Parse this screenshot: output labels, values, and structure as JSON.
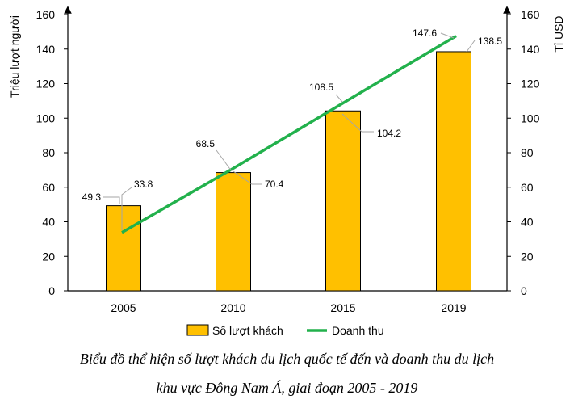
{
  "chart_data": {
    "type": "bar+line",
    "categories": [
      "2005",
      "2010",
      "2015",
      "2019"
    ],
    "series": [
      {
        "name": "Số lượt khách",
        "type": "bar",
        "axis": "left",
        "color": "#FFC000",
        "values": [
          49.3,
          68.5,
          104.2,
          138.5
        ],
        "labels": [
          "49.3",
          "68.5",
          "104.2",
          "138.5"
        ]
      },
      {
        "name": "Doanh thu",
        "type": "line",
        "axis": "right",
        "color": "#22B14C",
        "values": [
          33.8,
          70.4,
          108.5,
          147.6
        ],
        "labels": [
          "33.8",
          "70.4",
          "108.5",
          "147.6"
        ]
      }
    ],
    "y_left": {
      "label": "Triệu lượt người",
      "min": 0,
      "max": 160,
      "ticks": [
        "0",
        "20",
        "40",
        "60",
        "80",
        "100",
        "120",
        "140",
        "160"
      ]
    },
    "y_right": {
      "label": "Tỉ USD",
      "min": 0,
      "max": 160,
      "ticks": [
        "0",
        "20",
        "40",
        "60",
        "80",
        "100",
        "120",
        "140",
        "160"
      ]
    },
    "legend": {
      "position": "bottom",
      "items": [
        "Số lượt khách",
        "Doanh thu"
      ]
    },
    "grid": false
  },
  "caption": {
    "line1": "Biểu đồ thể hiện số lượt khách du lịch quốc tế đến và doanh thu du lịch",
    "line2": "khu vực Đông Nam Á, giai đoạn 2005 - 2019"
  }
}
